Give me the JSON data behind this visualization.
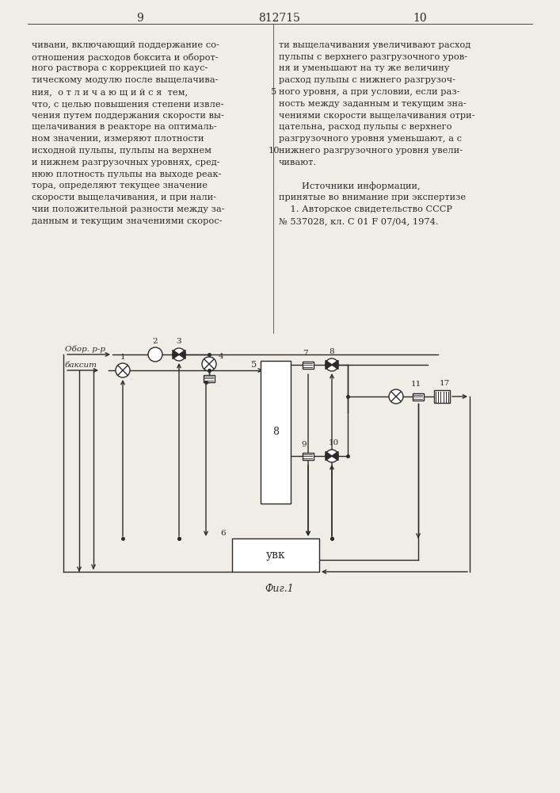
{
  "bg_color": "#f0ede6",
  "line_color": "#2a2a2a",
  "text_color": "#2a2a2a",
  "fig_label": "Фиг.1",
  "left_text_lines": [
    "чивани, включающий поддержание со-",
    "отношения расходов боксита и оборот-",
    "ного раствора с коррекцией по каус-",
    "тическому модулю после выщелачива-",
    "ния,  о т л и ч а ю щ и й с я  тем,",
    "что, с целью повышения степени извле-",
    "чения путем поддержания скорости вы-",
    "щелачивания в реакторе на оптималь-",
    "ном значении, измеряют плотности",
    "исходной пульпы, пульпы на верхнем",
    "и нижнем разгрузочных уровнях, сред-",
    "нюю плотность пульпы на выходе реак-",
    "тора, определяют текущее значение",
    "скорости выщелачивания, и при нали-",
    "чии положительной разности между за-",
    "данным и текущим значениями скорос-"
  ],
  "right_text_lines": [
    "ти выщелачивания увеличивают расход",
    "пульпы с верхнего разгрузочного уров-",
    "ня и уменьшают на ту же величину",
    "расход пульпы с нижнего разгрузоч-",
    "ного уровня, а при условии, если раз-",
    "ность между заданным и текущим зна-",
    "чениями скорости выщелачивания отри-",
    "цательна, расход пульпы с верхнего",
    "разгрузочного уровня уменьшают, а с",
    "нижнего разгрузочного уровня увели-",
    "чивают.",
    "",
    "        Источники информации,",
    "принятые во внимание при экспертизе",
    "    1. Авторское свидетельство СССР",
    "№ 537028, кл. С 01 F 07/04, 1974."
  ],
  "line5_index": 4,
  "line10_index": 9
}
